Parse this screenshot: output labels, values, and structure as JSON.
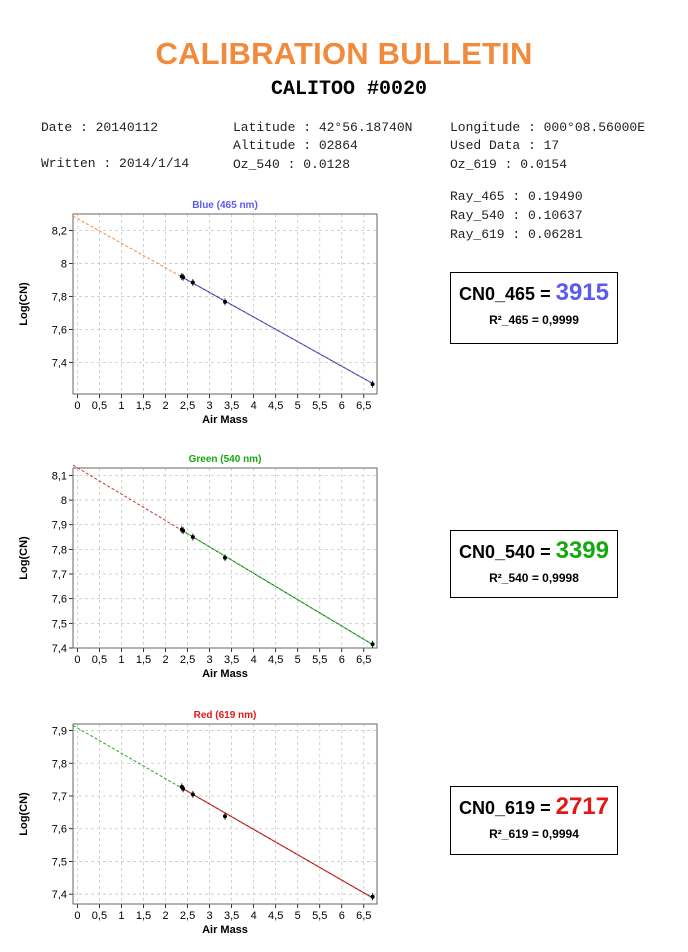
{
  "header": {
    "title": "CALIBRATION BULLETIN",
    "subtitle": "CALITOO #0020"
  },
  "info": {
    "date": "Date : 20140112",
    "written": "Written : 2014/1/14",
    "latitude": "Latitude : 42°56.18740N",
    "altitude": "Altitude : 02864",
    "oz_540": "Oz_540 : 0.0128",
    "longitude": "Longitude : 000°08.56000E",
    "used_data": "Used Data : 17",
    "oz_619": "Oz_619 : 0.0154",
    "ray_465": "Ray_465 : 0.19490",
    "ray_540": "Ray_540 : 0.10637",
    "ray_619": "Ray_619 : 0.06281"
  },
  "results": [
    {
      "cn_label": "CN0_465 = ",
      "cn_value": "3915",
      "r2": "R²_465 = 0,9999",
      "color": "#5b5bef"
    },
    {
      "cn_label": "CN0_540 = ",
      "cn_value": "3399",
      "r2": "R²_540 = 0,9998",
      "color": "#16a80f"
    },
    {
      "cn_label": "CN0_619 = ",
      "cn_value": "2717",
      "r2": "R²_619 = 0,9994",
      "color": "#e41717"
    }
  ],
  "chart_data": [
    {
      "type": "scatter",
      "title": "Blue (465 nm)",
      "title_color": "#5b5bef",
      "xlabel": "Air Mass",
      "ylabel": "Log(CN)",
      "xlim": [
        -0.1,
        6.8
      ],
      "ylim": [
        7.21,
        8.3
      ],
      "x_ticks": [
        0,
        0.5,
        1,
        1.5,
        2,
        2.5,
        3,
        3.5,
        4,
        4.5,
        5,
        5.5,
        6,
        6.5
      ],
      "x_tick_labels": [
        "0",
        "0,5",
        "1",
        "1,5",
        "2",
        "2,5",
        "3",
        "3,5",
        "4",
        "4,5",
        "5",
        "5,5",
        "6",
        "6,5"
      ],
      "y_ticks": [
        7.4,
        7.6,
        7.8,
        8.0,
        8.2
      ],
      "y_tick_labels": [
        "7,4",
        "7,6",
        "7,8",
        "8",
        "8,2"
      ],
      "grid": true,
      "points": [
        {
          "x": 2.37,
          "y": 7.922
        },
        {
          "x": 2.4,
          "y": 7.917
        },
        {
          "x": 2.62,
          "y": 7.885
        },
        {
          "x": 3.35,
          "y": 7.768
        },
        {
          "x": 6.7,
          "y": 7.27
        }
      ],
      "fit": {
        "intercept": 8.272,
        "slope": -0.149,
        "x_start": -0.1,
        "x_data_start": 2.37,
        "x_end": 6.72
      },
      "extrapolation_color": "#f28a3c",
      "fit_color": "#6a5fd6"
    },
    {
      "type": "scatter",
      "title": "Green (540 nm)",
      "title_color": "#16a80f",
      "xlabel": "Air Mass",
      "ylabel": "Log(CN)",
      "xlim": [
        -0.1,
        6.8
      ],
      "ylim": [
        7.4,
        8.13
      ],
      "x_ticks": [
        0,
        0.5,
        1,
        1.5,
        2,
        2.5,
        3,
        3.5,
        4,
        4.5,
        5,
        5.5,
        6,
        6.5
      ],
      "x_tick_labels": [
        "0",
        "0,5",
        "1",
        "1,5",
        "2",
        "2,5",
        "3",
        "3,5",
        "4",
        "4,5",
        "5",
        "5,5",
        "6",
        "6,5"
      ],
      "y_ticks": [
        7.4,
        7.5,
        7.6,
        7.7,
        7.8,
        7.9,
        8.0,
        8.1
      ],
      "y_tick_labels": [
        "7,4",
        "7,5",
        "7,6",
        "7,7",
        "7,8",
        "7,9",
        "8",
        "8,1"
      ],
      "grid": true,
      "points": [
        {
          "x": 2.37,
          "y": 7.88
        },
        {
          "x": 2.4,
          "y": 7.876
        },
        {
          "x": 2.62,
          "y": 7.85
        },
        {
          "x": 3.35,
          "y": 7.766
        },
        {
          "x": 6.7,
          "y": 7.415
        }
      ],
      "fit": {
        "intercept": 8.131,
        "slope": -0.107,
        "x_start": -0.1,
        "x_data_start": 2.37,
        "x_end": 6.72
      },
      "extrapolation_color": "#c33a3a",
      "fit_color": "#3cc23c"
    },
    {
      "type": "scatter",
      "title": "Red (619 nm)",
      "title_color": "#e41717",
      "xlabel": "Air Mass",
      "ylabel": "Log(CN)",
      "xlim": [
        -0.1,
        6.8
      ],
      "ylim": [
        7.37,
        7.92
      ],
      "x_ticks": [
        0,
        0.5,
        1,
        1.5,
        2,
        2.5,
        3,
        3.5,
        4,
        4.5,
        5,
        5.5,
        6,
        6.5
      ],
      "x_tick_labels": [
        "0",
        "0,5",
        "1",
        "1,5",
        "2",
        "2,5",
        "3",
        "3,5",
        "4",
        "4,5",
        "5",
        "5,5",
        "6",
        "6,5"
      ],
      "y_ticks": [
        7.4,
        7.5,
        7.6,
        7.7,
        7.8,
        7.9
      ],
      "y_tick_labels": [
        "7,4",
        "7,5",
        "7,6",
        "7,7",
        "7,8",
        "7,9"
      ],
      "grid": true,
      "points": [
        {
          "x": 2.37,
          "y": 7.728
        },
        {
          "x": 2.4,
          "y": 7.722
        },
        {
          "x": 2.62,
          "y": 7.705
        },
        {
          "x": 3.35,
          "y": 7.638
        },
        {
          "x": 6.7,
          "y": 7.392
        }
      ],
      "fit": {
        "intercept": 7.908,
        "slope": -0.0775,
        "x_start": -0.1,
        "x_data_start": 2.37,
        "x_end": 6.72
      },
      "extrapolation_color": "#2aa52a",
      "fit_color": "#e02424"
    }
  ]
}
